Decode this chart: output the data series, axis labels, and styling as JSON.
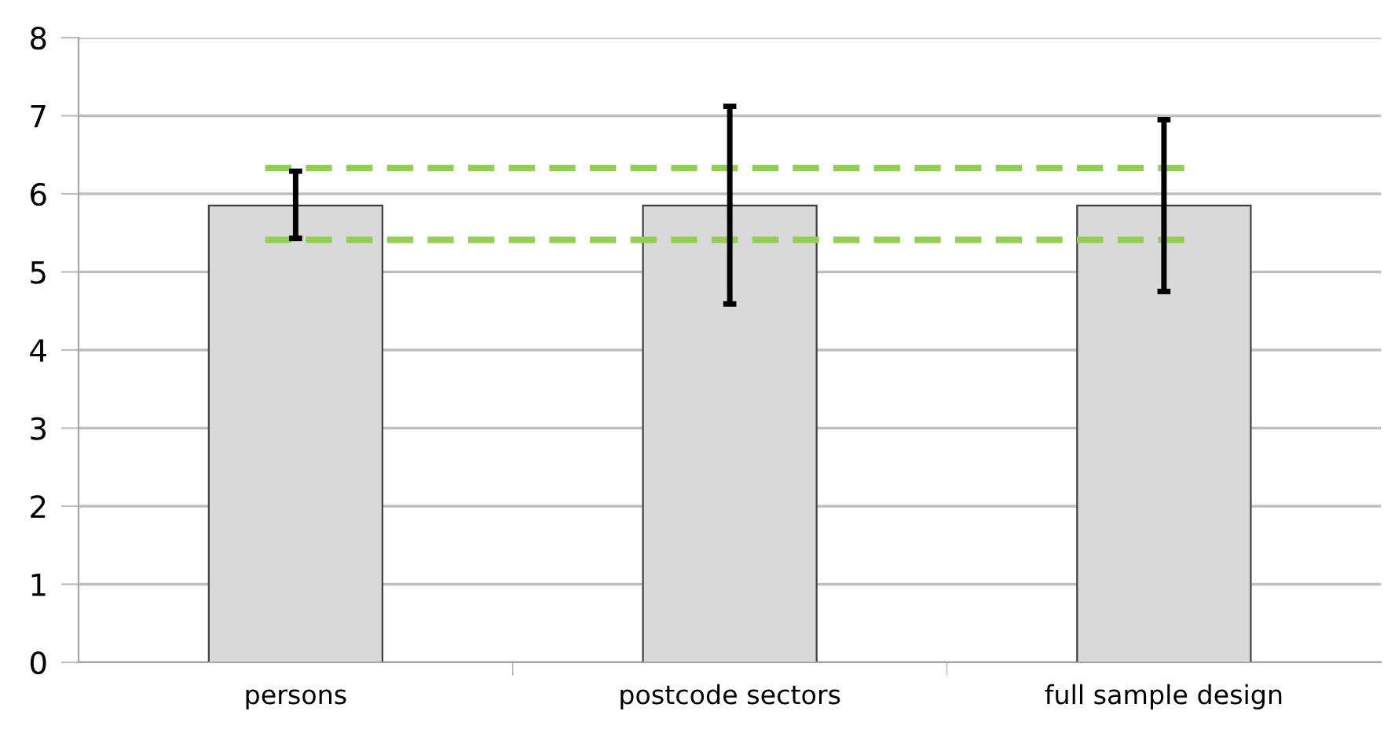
{
  "chart_data": {
    "type": "bar",
    "categories": [
      "persons",
      "postcode sectors",
      "full sample design"
    ],
    "values": [
      5.85,
      5.85,
      5.85
    ],
    "color": "#d9d9d9",
    "errors": [
      [
        5.43,
        6.29
      ],
      [
        4.59,
        7.12
      ],
      [
        4.75,
        6.95
      ]
    ],
    "ylim": [
      0,
      8
    ],
    "yticks": [
      0,
      1,
      2,
      3,
      4,
      5,
      6,
      7,
      8
    ],
    "grid": "y",
    "ref_lines": [
      {
        "axis": "y",
        "value": 6.33,
        "color": "#92d050",
        "line_style": "dashed"
      },
      {
        "axis": "y",
        "value": 5.41,
        "color": "#92d050",
        "line_style": "dashed"
      }
    ]
  }
}
